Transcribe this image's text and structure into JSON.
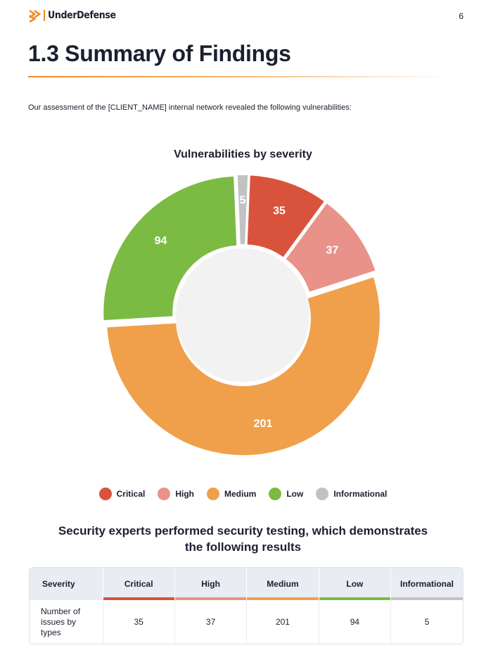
{
  "header": {
    "logo_text": "UnderDefense",
    "page_number": "6",
    "logo_icon": "double-chevron-right-icon",
    "brand_color": "#f08a24"
  },
  "section": {
    "title": "1.3 Summary of Findings",
    "intro": "Our assessment of the [CLIENT_NAME] internal network revealed the following vulnerabilities:"
  },
  "chart_data": {
    "type": "pie",
    "variant": "donut",
    "title": "Vulnerabilities by severity",
    "legend_position": "bottom",
    "categories": [
      "Critical",
      "High",
      "Medium",
      "Low",
      "Informational"
    ],
    "values": [
      35,
      37,
      201,
      94,
      5
    ],
    "colors": [
      "#d9533c",
      "#e8928a",
      "#f0a04b",
      "#7bbb43",
      "#c2c2c2"
    ],
    "inner_color": "#f2f2f2"
  },
  "results": {
    "heading_line1": "Security experts performed security testing, which demonstrates",
    "heading_line2": "the following results"
  },
  "table": {
    "headers": [
      "Severity",
      "Critical",
      "High",
      "Medium",
      "Low",
      "Informational"
    ],
    "row_label_lines": [
      "Number of",
      "issues by",
      "types"
    ],
    "values": [
      "35",
      "37",
      "201",
      "94",
      "5"
    ]
  }
}
